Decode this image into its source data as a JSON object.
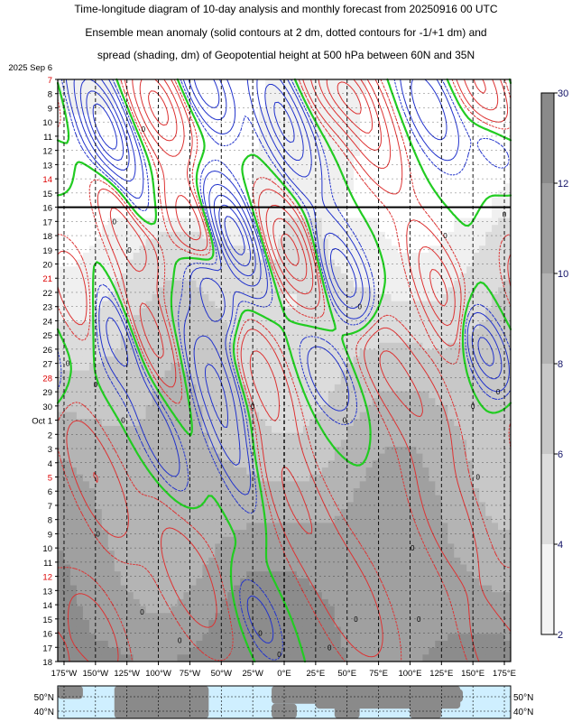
{
  "title": {
    "line1": "Time-longitude diagram of 10-day analysis and monthly forecast from 20250916 00 UTC",
    "line2": "Ensemble mean anomaly (solid contours at 2 dm, dotted contours for -1/+1 dm) and",
    "line3": "spread (shading, dm) of Geopotential height at 500 hPa between 60N and 35N"
  },
  "colors": {
    "positive": "#dd3333",
    "negative": "#2233cc",
    "zero": "#22cc22",
    "weekend": "#dd0000",
    "colorbar_labels": "#111166",
    "ocean": "#cfefff",
    "land": "#8a8a8a"
  },
  "chart_data": {
    "type": "heatmap",
    "x_axis": {
      "ticks": [
        "175°W",
        "150°W",
        "125°W",
        "100°W",
        "75°W",
        "50°W",
        "25°W",
        "0°E",
        "25°E",
        "50°E",
        "75°E",
        "100°E",
        "125°E",
        "150°E",
        "175°E"
      ],
      "tick_values": [
        -175,
        -150,
        -125,
        -100,
        -75,
        -50,
        -25,
        0,
        25,
        50,
        75,
        100,
        125,
        150,
        175
      ],
      "range": [
        -180,
        180
      ]
    },
    "y_axis": {
      "labels": [
        {
          "t": "2025 Sep  6",
          "weekend": false
        },
        {
          "t": "7",
          "weekend": true
        },
        {
          "t": "8",
          "weekend": false
        },
        {
          "t": "9",
          "weekend": false
        },
        {
          "t": "10",
          "weekend": false
        },
        {
          "t": "11",
          "weekend": false
        },
        {
          "t": "12",
          "weekend": false
        },
        {
          "t": "13",
          "weekend": false
        },
        {
          "t": "14",
          "weekend": true
        },
        {
          "t": "15",
          "weekend": false
        },
        {
          "t": "16",
          "weekend": false
        },
        {
          "t": "17",
          "weekend": false
        },
        {
          "t": "18",
          "weekend": false
        },
        {
          "t": "19",
          "weekend": false
        },
        {
          "t": "20",
          "weekend": false
        },
        {
          "t": "21",
          "weekend": true
        },
        {
          "t": "22",
          "weekend": false
        },
        {
          "t": "23",
          "weekend": false
        },
        {
          "t": "24",
          "weekend": false
        },
        {
          "t": "25",
          "weekend": false
        },
        {
          "t": "26",
          "weekend": false
        },
        {
          "t": "27",
          "weekend": false
        },
        {
          "t": "28",
          "weekend": true
        },
        {
          "t": "29",
          "weekend": false
        },
        {
          "t": "30",
          "weekend": false
        },
        {
          "t": "Oct  1",
          "weekend": false
        },
        {
          "t": "2",
          "weekend": false
        },
        {
          "t": "3",
          "weekend": false
        },
        {
          "t": "4",
          "weekend": false
        },
        {
          "t": "5",
          "weekend": true
        },
        {
          "t": "6",
          "weekend": false
        },
        {
          "t": "7",
          "weekend": false
        },
        {
          "t": "8",
          "weekend": false
        },
        {
          "t": "9",
          "weekend": false
        },
        {
          "t": "10",
          "weekend": false
        },
        {
          "t": "11",
          "weekend": false
        },
        {
          "t": "12",
          "weekend": true
        },
        {
          "t": "13",
          "weekend": false
        },
        {
          "t": "14",
          "weekend": false
        },
        {
          "t": "15",
          "weekend": false
        },
        {
          "t": "16",
          "weekend": false
        },
        {
          "t": "17",
          "weekend": false
        },
        {
          "t": "18",
          "weekend": false
        }
      ],
      "analysis_end": "16"
    },
    "colorbar": {
      "ticks": [
        "2",
        "4",
        "6",
        "8",
        "10",
        "12",
        "30"
      ],
      "tick_values": [
        2,
        4,
        6,
        8,
        10,
        12,
        30
      ]
    },
    "contour_labels": [
      "0",
      "0",
      "0",
      "0",
      "0",
      "0",
      "0",
      "0",
      "0",
      "0",
      "0",
      "0",
      "0",
      "0",
      "0",
      "0",
      "0",
      "0",
      "0",
      "0",
      "0",
      "0",
      "0"
    ],
    "features": [
      {
        "day": 4.5,
        "lon": -142,
        "amp": -12,
        "dx": 12,
        "dy": 3.0
      },
      {
        "day": 1.5,
        "lon": -62,
        "amp": -8,
        "dx": 11,
        "dy": 2.0
      },
      {
        "day": 4.0,
        "lon": 0,
        "amp": -9,
        "dx": 12,
        "dy": 3.0
      },
      {
        "day": 3.0,
        "lon": 115,
        "amp": -6,
        "dx": 12,
        "dy": 2.5
      },
      {
        "day": 5.0,
        "lon": 168,
        "amp": -6,
        "dx": 12,
        "dy": 2.0
      },
      {
        "day": 10.5,
        "lon": -120,
        "amp": -4,
        "dx": 10,
        "dy": 1.5
      },
      {
        "day": 12.0,
        "lon": -40,
        "amp": -12,
        "dx": 12,
        "dy": 2.5
      },
      {
        "day": 15.5,
        "lon": -58,
        "amp": -8,
        "dx": 11,
        "dy": 2.5
      },
      {
        "day": 15.0,
        "lon": 48,
        "amp": -9,
        "dx": 12,
        "dy": 2.5
      },
      {
        "day": 18.5,
        "lon": -140,
        "amp": -7,
        "dx": 12,
        "dy": 2.5
      },
      {
        "day": 20.0,
        "lon": 158,
        "amp": -8,
        "dx": 11,
        "dy": 2.0
      },
      {
        "day": 22.0,
        "lon": -55,
        "amp": -6,
        "dx": 14,
        "dy": 3.0
      },
      {
        "day": 22.0,
        "lon": 35,
        "amp": -4,
        "dx": 12,
        "dy": 2.0
      },
      {
        "day": 26.0,
        "lon": -100,
        "amp": -4,
        "dx": 10,
        "dy": 3.0
      },
      {
        "day": 27.0,
        "lon": -42,
        "amp": -4,
        "dx": 10,
        "dy": 3.0
      },
      {
        "day": 39.0,
        "lon": -20,
        "amp": -3,
        "dx": 10,
        "dy": 2.0
      },
      {
        "day": 3.0,
        "lon": -100,
        "amp": 9,
        "dx": 13,
        "dy": 2.5
      },
      {
        "day": 1.5,
        "lon": 40,
        "amp": 7,
        "dx": 16,
        "dy": 2.0
      },
      {
        "day": 4.0,
        "lon": 65,
        "amp": 7,
        "dx": 13,
        "dy": 3.0
      },
      {
        "day": 2.5,
        "lon": 160,
        "amp": 8,
        "dx": 12,
        "dy": 3.0
      },
      {
        "day": 11.0,
        "lon": -125,
        "amp": 8,
        "dx": 12,
        "dy": 2.5
      },
      {
        "day": 12.0,
        "lon": -70,
        "amp": 8,
        "dx": 12,
        "dy": 2.5
      },
      {
        "day": 13.0,
        "lon": 5,
        "amp": 9,
        "dx": 13,
        "dy": 2.5
      },
      {
        "day": 16.0,
        "lon": 125,
        "amp": 7,
        "dx": 12,
        "dy": 3.0
      },
      {
        "day": 16.5,
        "lon": -160,
        "amp": 6,
        "dx": 12,
        "dy": 2.5
      },
      {
        "day": 19.0,
        "lon": -105,
        "amp": 5,
        "dx": 12,
        "dy": 3.0
      },
      {
        "day": 21.5,
        "lon": -20,
        "amp": 5,
        "dx": 14,
        "dy": 3.0
      },
      {
        "day": 20.0,
        "lon": 75,
        "amp": 4,
        "dx": 14,
        "dy": 3.0
      },
      {
        "day": 24.0,
        "lon": 110,
        "amp": 3,
        "dx": 16,
        "dy": 3.0
      },
      {
        "day": 29.0,
        "lon": -150,
        "amp": 4,
        "dx": 14,
        "dy": 3.5
      },
      {
        "day": 30.0,
        "lon": 5,
        "amp": 4,
        "dx": 16,
        "dy": 4.0
      },
      {
        "day": 32.0,
        "lon": 130,
        "amp": 3,
        "dx": 18,
        "dy": 4.0
      },
      {
        "day": 36.0,
        "lon": -75,
        "amp": 3,
        "dx": 18,
        "dy": 4.0
      },
      {
        "day": 38.0,
        "lon": 55,
        "amp": 3,
        "dx": 20,
        "dy": 4.0
      },
      {
        "day": 40.0,
        "lon": -150,
        "amp": 3,
        "dx": 16,
        "dy": 3.0
      },
      {
        "day": 42.0,
        "lon": 170,
        "amp": 3,
        "dx": 16,
        "dy": 3.0
      }
    ]
  },
  "map_strip": {
    "lat_labels_left": [
      "50°N",
      "40°N"
    ],
    "lat_labels_right": [
      "50°N",
      "40°N"
    ]
  }
}
